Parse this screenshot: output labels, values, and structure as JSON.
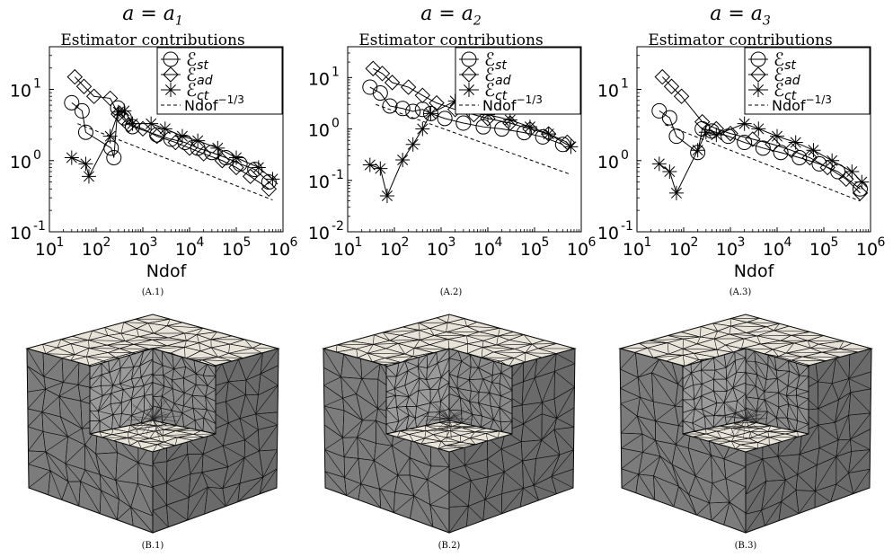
{
  "charts": [
    {
      "title_math": "a = a1",
      "subtitle": "Estimator contributions",
      "caption": "(A.1)",
      "xlabel": "Ndof",
      "xlim_exp": [
        1,
        6
      ],
      "ylim_exp": [
        -1,
        1.6
      ],
      "yticks": [
        -1,
        0,
        1
      ],
      "legend": [
        "E_st",
        "E_ad",
        "E_ct",
        "Ndof^-1/3"
      ],
      "st": [
        [
          30,
          6.5
        ],
        [
          50,
          5
        ],
        [
          60,
          2.5
        ],
        [
          210,
          1.5
        ],
        [
          240,
          1.1
        ],
        [
          290,
          5.5
        ],
        [
          400,
          4
        ],
        [
          600,
          3
        ],
        [
          2000,
          2.3
        ],
        [
          4000,
          2
        ],
        [
          8000,
          1.8
        ],
        [
          15000,
          1.5
        ],
        [
          30000,
          1.3
        ],
        [
          60000,
          1.1
        ],
        [
          120000,
          0.9
        ],
        [
          250000,
          0.75
        ],
        [
          500000,
          0.5
        ]
      ],
      "ad": [
        [
          35,
          15
        ],
        [
          55,
          11
        ],
        [
          90,
          8
        ],
        [
          200,
          7.5
        ],
        [
          300,
          4.5
        ],
        [
          500,
          3.2
        ],
        [
          1000,
          2.8
        ],
        [
          2000,
          2.2
        ],
        [
          5000,
          1.8
        ],
        [
          10000,
          1.5
        ],
        [
          20000,
          1.25
        ],
        [
          50000,
          1.0
        ],
        [
          100000,
          0.8
        ],
        [
          200000,
          0.6
        ],
        [
          500000,
          0.4
        ]
      ],
      "ct": [
        [
          30,
          1.1
        ],
        [
          60,
          0.9
        ],
        [
          70,
          0.6
        ],
        [
          200,
          2.2
        ],
        [
          300,
          4.8
        ],
        [
          400,
          5
        ],
        [
          600,
          3.3
        ],
        [
          1500,
          3.3
        ],
        [
          3000,
          2.8
        ],
        [
          7000,
          2.2
        ],
        [
          15000,
          1.9
        ],
        [
          40000,
          1.5
        ],
        [
          100000,
          1.1
        ],
        [
          300000,
          0.8
        ],
        [
          600000,
          0.55
        ]
      ],
      "ref": [
        [
          40,
          3.3
        ],
        [
          600000,
          0.28
        ]
      ]
    },
    {
      "title_math": "a = a2",
      "subtitle": "Estimator contributions",
      "caption": "(A.2)",
      "xlabel": "",
      "xlim_exp": [
        1,
        6
      ],
      "ylim_exp": [
        -2,
        1.6
      ],
      "yticks": [
        -2,
        -1,
        0,
        1
      ],
      "legend": [
        "E_st",
        "E_ad",
        "E_ct",
        "Ndof^-1/3"
      ],
      "st": [
        [
          30,
          6.5
        ],
        [
          50,
          5
        ],
        [
          80,
          2.8
        ],
        [
          150,
          2.5
        ],
        [
          250,
          2.2
        ],
        [
          400,
          2.4
        ],
        [
          600,
          2.0
        ],
        [
          1200,
          1.6
        ],
        [
          3000,
          1.3
        ],
        [
          8000,
          1.1
        ],
        [
          20000,
          1.0
        ],
        [
          60000,
          0.85
        ],
        [
          150000,
          0.7
        ],
        [
          400000,
          0.5
        ]
      ],
      "ad": [
        [
          35,
          15
        ],
        [
          55,
          12
        ],
        [
          90,
          8
        ],
        [
          200,
          6.5
        ],
        [
          400,
          4.5
        ],
        [
          800,
          3.2
        ],
        [
          2000,
          2.4
        ],
        [
          5000,
          1.9
        ],
        [
          10000,
          1.6
        ],
        [
          30000,
          1.3
        ],
        [
          80000,
          1.0
        ],
        [
          200000,
          0.8
        ],
        [
          500000,
          0.55
        ]
      ],
      "ct": [
        [
          30,
          0.2
        ],
        [
          50,
          0.17
        ],
        [
          70,
          0.05
        ],
        [
          150,
          0.25
        ],
        [
          250,
          0.5
        ],
        [
          400,
          1.0
        ],
        [
          600,
          2.0
        ],
        [
          2000,
          3.5
        ],
        [
          4000,
          2.4
        ],
        [
          10000,
          1.9
        ],
        [
          30000,
          1.5
        ],
        [
          80000,
          1.1
        ],
        [
          200000,
          0.8
        ],
        [
          600000,
          0.45
        ]
      ],
      "ref": [
        [
          40,
          3.0
        ],
        [
          600000,
          0.13
        ]
      ]
    },
    {
      "title_math": "a = a3",
      "subtitle": "Estimator contributions",
      "caption": "(A.3)",
      "xlabel": "Ndof",
      "xlim_exp": [
        1,
        6
      ],
      "ylim_exp": [
        -1,
        1.6
      ],
      "yticks": [
        -1,
        0,
        1
      ],
      "legend": [
        "E_st",
        "E_ad",
        "E_ct",
        "Ndof^-1/3"
      ],
      "st": [
        [
          30,
          5
        ],
        [
          50,
          4
        ],
        [
          70,
          2.2
        ],
        [
          200,
          1.3
        ],
        [
          250,
          2.8
        ],
        [
          400,
          2.6
        ],
        [
          900,
          2.2
        ],
        [
          2000,
          1.8
        ],
        [
          5000,
          1.5
        ],
        [
          12000,
          1.3
        ],
        [
          30000,
          1.1
        ],
        [
          80000,
          0.9
        ],
        [
          200000,
          0.7
        ],
        [
          600000,
          0.4
        ]
      ],
      "ad": [
        [
          35,
          15
        ],
        [
          55,
          11
        ],
        [
          90,
          8
        ],
        [
          250,
          3.5
        ],
        [
          500,
          2.8
        ],
        [
          1000,
          2.4
        ],
        [
          3000,
          2.0
        ],
        [
          8000,
          1.7
        ],
        [
          20000,
          1.4
        ],
        [
          50000,
          1.1
        ],
        [
          120000,
          0.8
        ],
        [
          300000,
          0.55
        ],
        [
          600000,
          0.35
        ]
      ],
      "ct": [
        [
          30,
          0.9
        ],
        [
          50,
          0.7
        ],
        [
          70,
          0.35
        ],
        [
          200,
          1.4
        ],
        [
          300,
          2.5
        ],
        [
          500,
          2.3
        ],
        [
          2000,
          3.3
        ],
        [
          4000,
          2.8
        ],
        [
          10000,
          2.2
        ],
        [
          25000,
          1.8
        ],
        [
          60000,
          1.4
        ],
        [
          150000,
          1.0
        ],
        [
          400000,
          0.7
        ],
        [
          650000,
          0.5
        ]
      ],
      "ref": [
        [
          40,
          3.2
        ],
        [
          600000,
          0.27
        ]
      ]
    }
  ],
  "meshes": [
    {
      "caption": "(B.1)"
    },
    {
      "caption": "(B.2)"
    },
    {
      "caption": "(B.3)"
    }
  ]
}
